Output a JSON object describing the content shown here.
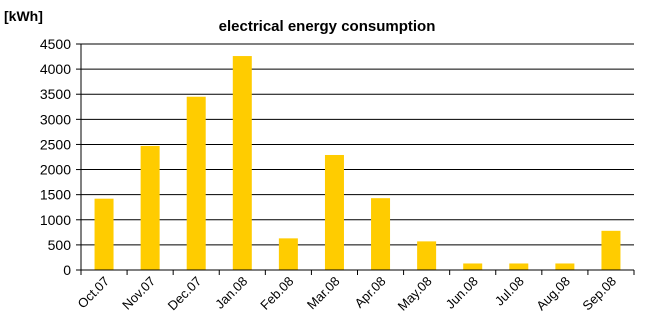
{
  "chart_data": {
    "type": "bar",
    "title": "electrical energy consumption",
    "ylabel": "[kWh]",
    "xlabel": "",
    "categories": [
      "Oct.07",
      "Nov.07",
      "Dec.07",
      "Jan.08",
      "Feb.08",
      "Mar.08",
      "Apr.08",
      "May.08",
      "Jun.08",
      "Jul.08",
      "Aug.08",
      "Sep.08"
    ],
    "values": [
      1420,
      2470,
      3450,
      4260,
      630,
      2290,
      1430,
      570,
      130,
      130,
      130,
      780
    ],
    "ylim": [
      0,
      4500
    ],
    "yticks": [
      0,
      500,
      1000,
      1500,
      2000,
      2500,
      3000,
      3500,
      4000,
      4500
    ],
    "grid": true,
    "bar_color": "#FFCC00",
    "axis_color": "#000000"
  }
}
